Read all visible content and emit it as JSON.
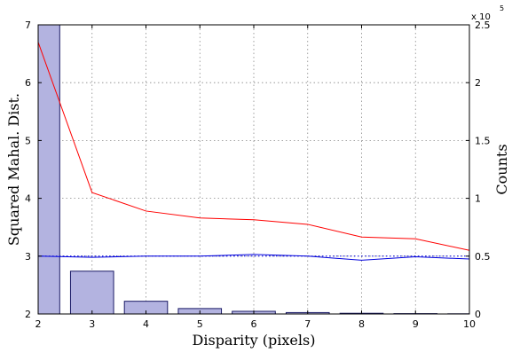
{
  "chart_data": {
    "type": "bar",
    "xlabel": "Disparity (pixels)",
    "ylabel_left": "Squared Mahal. Dist.",
    "ylabel_right": "Counts",
    "right_axis_multiplier": "x 10",
    "right_axis_exponent": "5",
    "x_ticks": [
      "2",
      "3",
      "4",
      "5",
      "6",
      "7",
      "8",
      "9",
      "10"
    ],
    "y_left_ticks": [
      "2",
      "3",
      "4",
      "5",
      "6",
      "7"
    ],
    "y_right_ticks": [
      "0",
      "0.5",
      "1",
      "1.5",
      "2",
      "2.5"
    ],
    "xlim": [
      2,
      10
    ],
    "ylim_left": [
      2,
      7
    ],
    "ylim_right": [
      0,
      250000
    ],
    "grid": true,
    "bar_color": "#b3b3e0",
    "bars": {
      "name": "",
      "x": [
        2,
        3,
        4,
        5,
        6,
        7,
        8,
        9,
        10
      ],
      "values": [
        250000,
        37000,
        11000,
        4700,
        2300,
        1200,
        600,
        300,
        150
      ]
    },
    "series": [
      {
        "name": "",
        "color": "#ff0000",
        "style": "solid",
        "x": [
          2,
          3,
          4,
          5,
          6,
          7,
          8,
          9,
          10
        ],
        "y": [
          6.7,
          4.1,
          3.78,
          3.66,
          3.63,
          3.55,
          3.33,
          3.3,
          3.1
        ]
      },
      {
        "name": "",
        "color": "#0000dd",
        "style": "solid",
        "x": [
          2,
          3,
          4,
          5,
          6,
          7,
          8,
          9,
          10
        ],
        "y": [
          3.0,
          2.98,
          3.0,
          3.0,
          3.03,
          3.0,
          2.93,
          2.99,
          2.95
        ]
      },
      {
        "name": "",
        "color": "#0000dd",
        "style": "dotted",
        "x": [
          2,
          10
        ],
        "y": [
          3.0,
          3.0
        ]
      }
    ]
  }
}
